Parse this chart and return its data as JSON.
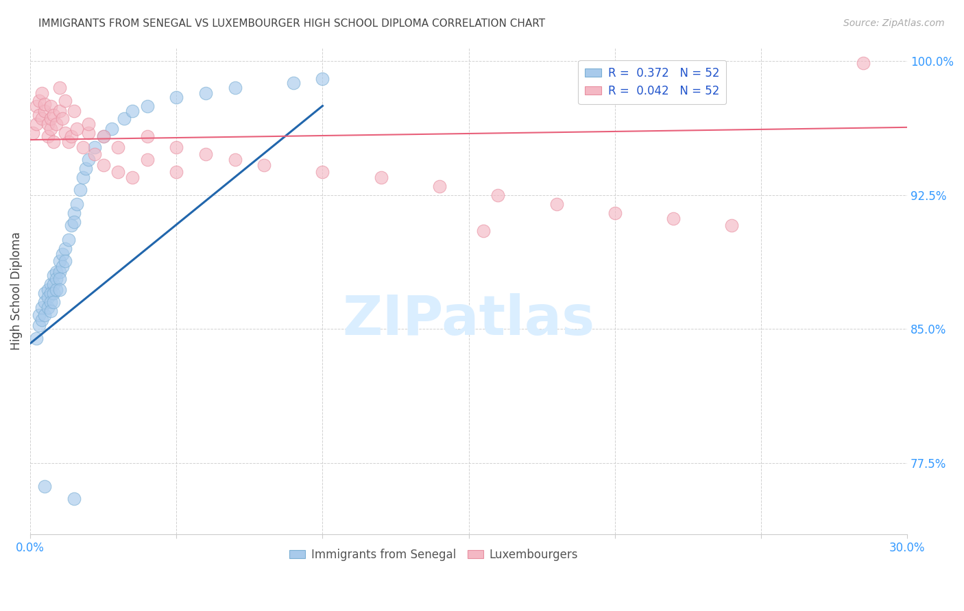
{
  "title": "IMMIGRANTS FROM SENEGAL VS LUXEMBOURGER HIGH SCHOOL DIPLOMA CORRELATION CHART",
  "source": "Source: ZipAtlas.com",
  "ylabel": "High School Diploma",
  "xlim": [
    0.0,
    0.3
  ],
  "ylim": [
    0.735,
    1.008
  ],
  "xticks": [
    0.0,
    0.05,
    0.1,
    0.15,
    0.2,
    0.25,
    0.3
  ],
  "xticklabels": [
    "0.0%",
    "",
    "",
    "",
    "",
    "",
    "30.0%"
  ],
  "yticks": [
    0.775,
    0.85,
    0.925,
    1.0
  ],
  "yticklabels": [
    "77.5%",
    "85.0%",
    "92.5%",
    "100.0%"
  ],
  "blue_color": "#a8caeb",
  "pink_color": "#f4b8c4",
  "blue_edge_color": "#7bafd4",
  "pink_edge_color": "#e88fa0",
  "blue_line_color": "#2166ac",
  "pink_line_color": "#e8607a",
  "title_color": "#444444",
  "source_color": "#aaaaaa",
  "tick_color": "#3399ff",
  "watermark_color": "#daeeff",
  "legend_label_color": "#2255cc",
  "bottom_legend_color": "#555555",
  "blue_line_x": [
    0.0,
    0.1
  ],
  "blue_line_y": [
    0.842,
    0.975
  ],
  "pink_line_x": [
    0.0,
    0.3
  ],
  "pink_line_y": [
    0.956,
    0.963
  ],
  "blue_x": [
    0.002,
    0.003,
    0.003,
    0.004,
    0.004,
    0.005,
    0.005,
    0.005,
    0.006,
    0.006,
    0.006,
    0.007,
    0.007,
    0.007,
    0.007,
    0.008,
    0.008,
    0.008,
    0.008,
    0.009,
    0.009,
    0.009,
    0.01,
    0.01,
    0.01,
    0.01,
    0.011,
    0.011,
    0.012,
    0.012,
    0.013,
    0.014,
    0.015,
    0.015,
    0.016,
    0.017,
    0.018,
    0.019,
    0.02,
    0.022,
    0.025,
    0.028,
    0.032,
    0.035,
    0.04,
    0.05,
    0.06,
    0.07,
    0.09,
    0.1,
    0.005,
    0.015
  ],
  "blue_y": [
    0.845,
    0.852,
    0.858,
    0.862,
    0.855,
    0.87,
    0.865,
    0.858,
    0.872,
    0.868,
    0.862,
    0.875,
    0.87,
    0.865,
    0.86,
    0.88,
    0.875,
    0.87,
    0.865,
    0.882,
    0.878,
    0.872,
    0.888,
    0.882,
    0.878,
    0.872,
    0.892,
    0.885,
    0.895,
    0.888,
    0.9,
    0.908,
    0.915,
    0.91,
    0.92,
    0.928,
    0.935,
    0.94,
    0.945,
    0.952,
    0.958,
    0.962,
    0.968,
    0.972,
    0.975,
    0.98,
    0.982,
    0.985,
    0.988,
    0.99,
    0.762,
    0.755
  ],
  "pink_x": [
    0.001,
    0.002,
    0.002,
    0.003,
    0.003,
    0.004,
    0.004,
    0.005,
    0.005,
    0.006,
    0.006,
    0.007,
    0.007,
    0.007,
    0.008,
    0.008,
    0.009,
    0.01,
    0.011,
    0.012,
    0.013,
    0.014,
    0.016,
    0.018,
    0.02,
    0.022,
    0.025,
    0.03,
    0.035,
    0.04,
    0.05,
    0.06,
    0.07,
    0.08,
    0.1,
    0.12,
    0.14,
    0.16,
    0.18,
    0.2,
    0.22,
    0.24,
    0.01,
    0.012,
    0.015,
    0.02,
    0.025,
    0.03,
    0.04,
    0.05,
    0.285,
    0.155
  ],
  "pink_y": [
    0.96,
    0.975,
    0.965,
    0.97,
    0.978,
    0.968,
    0.982,
    0.972,
    0.976,
    0.965,
    0.958,
    0.962,
    0.968,
    0.975,
    0.955,
    0.97,
    0.965,
    0.972,
    0.968,
    0.96,
    0.955,
    0.958,
    0.962,
    0.952,
    0.96,
    0.948,
    0.942,
    0.938,
    0.935,
    0.958,
    0.952,
    0.948,
    0.945,
    0.942,
    0.938,
    0.935,
    0.93,
    0.925,
    0.92,
    0.915,
    0.912,
    0.908,
    0.985,
    0.978,
    0.972,
    0.965,
    0.958,
    0.952,
    0.945,
    0.938,
    0.999,
    0.905
  ]
}
